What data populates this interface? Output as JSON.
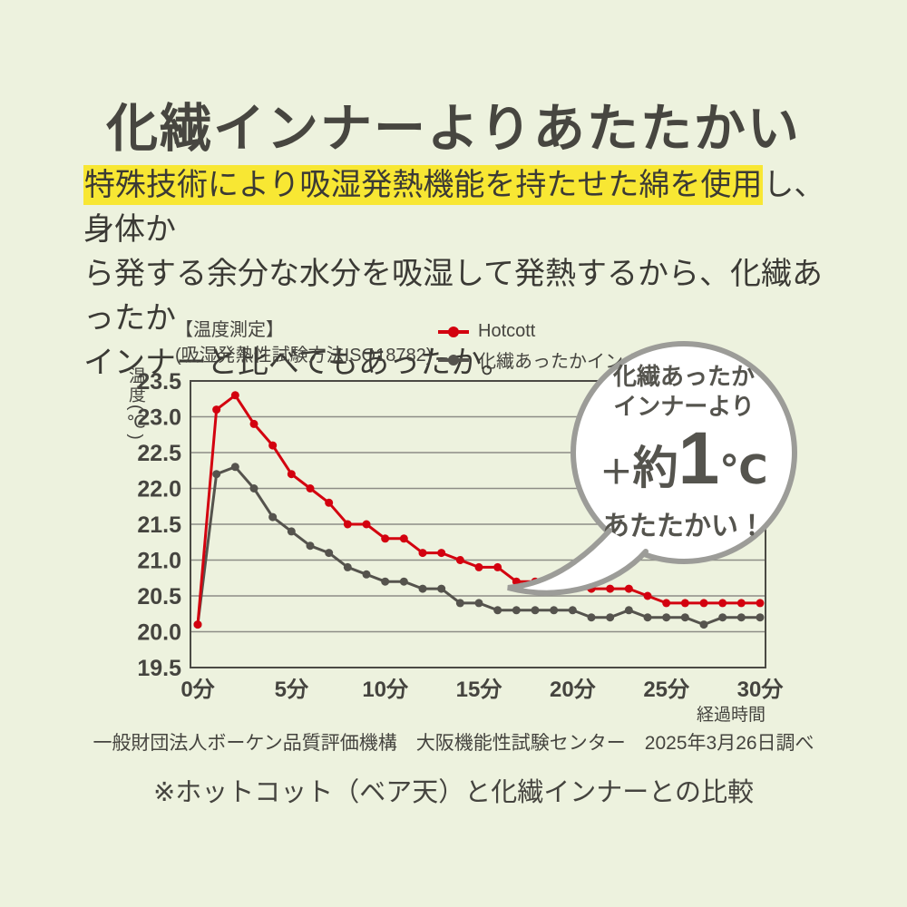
{
  "page": {
    "title": "化繊インナーよりあたたかい"
  },
  "colors": {
    "background": "#edf2de",
    "title_text": "#474640",
    "body_text": "#3b3a35",
    "highlight": "#f8e733",
    "axis_text": "#45443f",
    "grid_line": "#8d8d86",
    "box_border": "#4b4a44",
    "bubble_border": "#9c9c98",
    "bubble_text": "#55544e",
    "series_red": "#d3010f",
    "series_gray": "#55534d"
  },
  "intro": {
    "highlight": "特殊技術により吸湿発熱機能を持たせた綿を使用",
    "line1_rest": "し、身体か",
    "line2": "ら発する余分な水分を吸湿して発熱するから、化繊あったか",
    "line3": "インナーと比べてもあったか。"
  },
  "chart": {
    "caption_line1": "【温度測定】",
    "caption_line2": "(吸湿発熱性試験方法ISO18782)",
    "y_axis_label": "温度(℃)"
  },
  "chart_data": {
    "type": "line",
    "title": "温度測定",
    "xlabel": "経過時間",
    "ylabel": "温度(℃)",
    "ylim": [
      19.5,
      23.5
    ],
    "y_ticks": [
      23.5,
      23.0,
      22.5,
      22.0,
      21.5,
      21.0,
      20.5,
      20.0,
      19.5
    ],
    "x_ticks": [
      0,
      5,
      10,
      15,
      20,
      25,
      30
    ],
    "x_tick_suffix": "分",
    "grid": true,
    "legend_position": "top-right",
    "x": [
      0,
      1,
      2,
      3,
      4,
      5,
      6,
      7,
      8,
      9,
      10,
      11,
      12,
      13,
      14,
      15,
      16,
      17,
      18,
      19,
      20,
      21,
      22,
      23,
      24,
      25,
      26,
      27,
      28,
      29,
      30
    ],
    "series": [
      {
        "name": "Hotcott",
        "color": "#d3010f",
        "values": [
          20.1,
          23.1,
          23.3,
          22.9,
          22.6,
          22.2,
          22.0,
          21.8,
          21.5,
          21.5,
          21.3,
          21.3,
          21.1,
          21.1,
          21.0,
          20.9,
          20.9,
          20.7,
          20.7,
          20.6,
          20.6,
          20.6,
          20.6,
          20.6,
          20.5,
          20.4,
          20.4,
          20.4,
          20.4,
          20.4,
          20.4
        ]
      },
      {
        "name": "化繊あったかインナー",
        "color": "#55534d",
        "values": [
          20.1,
          22.2,
          22.3,
          22.0,
          21.6,
          21.4,
          21.2,
          21.1,
          20.9,
          20.8,
          20.7,
          20.7,
          20.6,
          20.6,
          20.4,
          20.4,
          20.3,
          20.3,
          20.3,
          20.3,
          20.3,
          20.2,
          20.2,
          20.3,
          20.2,
          20.2,
          20.2,
          20.1,
          20.2,
          20.2,
          20.2
        ]
      }
    ]
  },
  "bubble": {
    "line1": "化繊あったか",
    "line2": "インナーより",
    "plus": "＋",
    "approx": "約",
    "value": "1",
    "unit": "℃",
    "line4": "あたたかい！"
  },
  "footer": {
    "source": "一般財団法人ボーケン品質評価機構　大阪機能性試験センター　2025年3月26日調べ",
    "note": "※ホットコット（ベア天）と化繊インナーとの比較"
  }
}
